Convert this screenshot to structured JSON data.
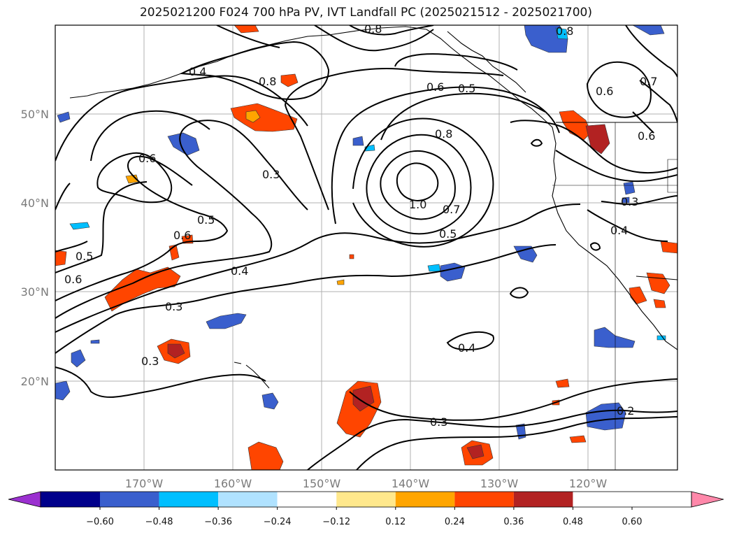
{
  "title": "2025021200 F024 700 hPa PV, IVT Landfall PC (2025021512 - 2025021700)",
  "map": {
    "lon_range": [
      180,
      110
    ],
    "lat_range": [
      10,
      60
    ],
    "lon_labels": [
      "170°W",
      "160°W",
      "150°W",
      "140°W",
      "130°W",
      "120°W"
    ],
    "lat_labels": [
      "50°N",
      "40°N",
      "30°N",
      "20°N"
    ],
    "contour_labels": [
      "0.8",
      "0.8",
      "0.4",
      "0.8",
      "0.6",
      "0.5",
      "0.6",
      "0.7",
      "0.6",
      "0.3",
      "0.8",
      "0.6",
      "1.0",
      "0.7",
      "0.5",
      "0.3",
      "0.4",
      "0.5",
      "0.6",
      "0.5",
      "0.6",
      "0.4",
      "0.3",
      "0.3",
      "0.4",
      "0.3",
      "0.2"
    ]
  },
  "colorbar": {
    "ticks": [
      "−0.60",
      "−0.48",
      "−0.36",
      "−0.24",
      "−0.12",
      "0.12",
      "0.24",
      "0.36",
      "0.48",
      "0.60"
    ],
    "colors": [
      "#9b30d0",
      "#00008b",
      "#3a5fcd",
      "#00bfff",
      "#b0e2ff",
      "#ffffff",
      "#ffe88c",
      "#ffa500",
      "#ff4500",
      "#b22222",
      "#ff88aa"
    ]
  }
}
